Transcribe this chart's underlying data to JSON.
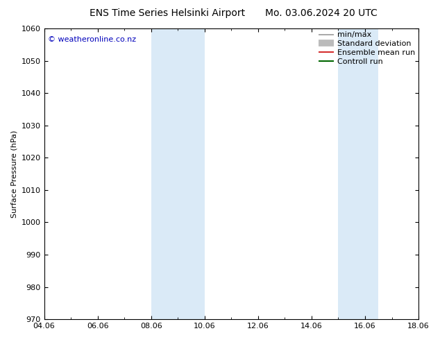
{
  "title_left": "ENS Time Series Helsinki Airport",
  "title_right": "Mo. 03.06.2024 20 UTC",
  "ylabel": "Surface Pressure (hPa)",
  "ylim": [
    970,
    1060
  ],
  "yticks": [
    970,
    980,
    990,
    1000,
    1010,
    1020,
    1030,
    1040,
    1050,
    1060
  ],
  "xticks": [
    "04.06",
    "06.06",
    "08.06",
    "10.06",
    "12.06",
    "14.06",
    "16.06",
    "18.06"
  ],
  "xtick_vals": [
    4.0,
    6.0,
    8.0,
    10.0,
    12.0,
    14.0,
    16.0,
    18.0
  ],
  "xlim": [
    4.0,
    18.0
  ],
  "shaded_bands": [
    {
      "xmin": 8.0,
      "xmax": 10.0
    },
    {
      "xmin": 15.0,
      "xmax": 16.5
    }
  ],
  "shade_color": "#daeaf7",
  "watermark": "© weatheronline.co.nz",
  "watermark_color": "#0000bb",
  "legend_entries": [
    {
      "label": "min/max",
      "color": "#999999",
      "lw": 1.2,
      "style": "solid"
    },
    {
      "label": "Standard deviation",
      "color": "#bbbbbb",
      "lw": 7,
      "style": "solid"
    },
    {
      "label": "Ensemble mean run",
      "color": "#cc0000",
      "lw": 1.2,
      "style": "solid"
    },
    {
      "label": "Controll run",
      "color": "#006600",
      "lw": 1.5,
      "style": "solid"
    }
  ],
  "bg_color": "#ffffff",
  "font_size_title": 10,
  "font_size_axis": 8,
  "font_size_ticks": 8,
  "font_size_legend": 8,
  "font_size_watermark": 8
}
